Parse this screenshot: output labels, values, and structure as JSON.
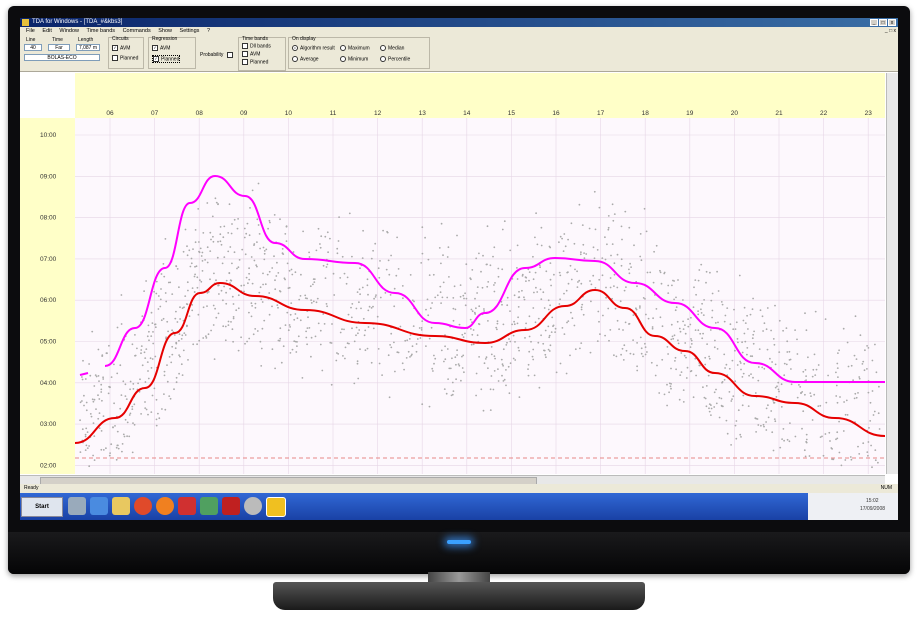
{
  "window": {
    "title": "TDA for Windows - [TDA_#&kbs3]",
    "controls": [
      "_",
      "□",
      "x"
    ],
    "mdi_controls": "_ □ x"
  },
  "menu": [
    "File",
    "Edit",
    "Window",
    "Time bands",
    "Commands",
    "Show",
    "Settings",
    "?"
  ],
  "toolbar": {
    "line_label": "Line",
    "line_value": "40",
    "time_label": "Time",
    "time_value": "Far",
    "length_label": "Length",
    "length_value": "7,087 m",
    "route_value": "BOLAS-ECO",
    "circuits": {
      "label": "Circuits",
      "avm": "AVM",
      "planned": "Planned"
    },
    "regression": {
      "label": "Regression",
      "avm": "AVM",
      "planned": "Planned"
    },
    "probability_label": "Probability",
    "time_bands": {
      "label": "Time bands",
      "all_bands": "Dll bands",
      "avm": "AVM",
      "planned": "Planned"
    },
    "on_display": {
      "label": "On display",
      "options": [
        "Algorithm result",
        "Maximum",
        "Median",
        "Average",
        "Minimum",
        "Percentile"
      ]
    }
  },
  "axes": {
    "hours": [
      "06",
      "07",
      "08",
      "09",
      "10",
      "11",
      "12",
      "13",
      "14",
      "15",
      "16",
      "17",
      "18",
      "19",
      "20",
      "21",
      "22",
      "23"
    ],
    "durations": [
      "10:00",
      "09:00",
      "08:00",
      "07:00",
      "06:00",
      "05:00",
      "04:00",
      "03:00",
      "02:00"
    ]
  },
  "colors": {
    "upper_curve": "#ff00ff",
    "lower_curve": "#e60000",
    "scatter": "#aaaaaa",
    "threshold": "#e88888"
  },
  "status": {
    "left": "Ready",
    "right": "NUM"
  },
  "taskbar": {
    "start_label": "Start",
    "tray_time": "15:02",
    "tray_date": "17/09/2008"
  }
}
